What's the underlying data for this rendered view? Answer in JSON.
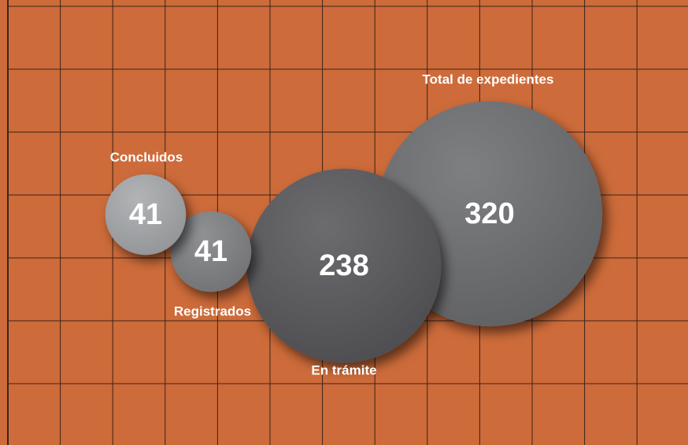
{
  "chart_data": {
    "type": "bubble",
    "categories": [
      "Concluidos",
      "Registrados",
      "En trámite",
      "Total de expedientes"
    ],
    "values": [
      41,
      41,
      238,
      320
    ],
    "colors": [
      "#a7a9ac",
      "#818285",
      "#58595b",
      "#6d6e71"
    ],
    "background": "#cd6b3a"
  }
}
